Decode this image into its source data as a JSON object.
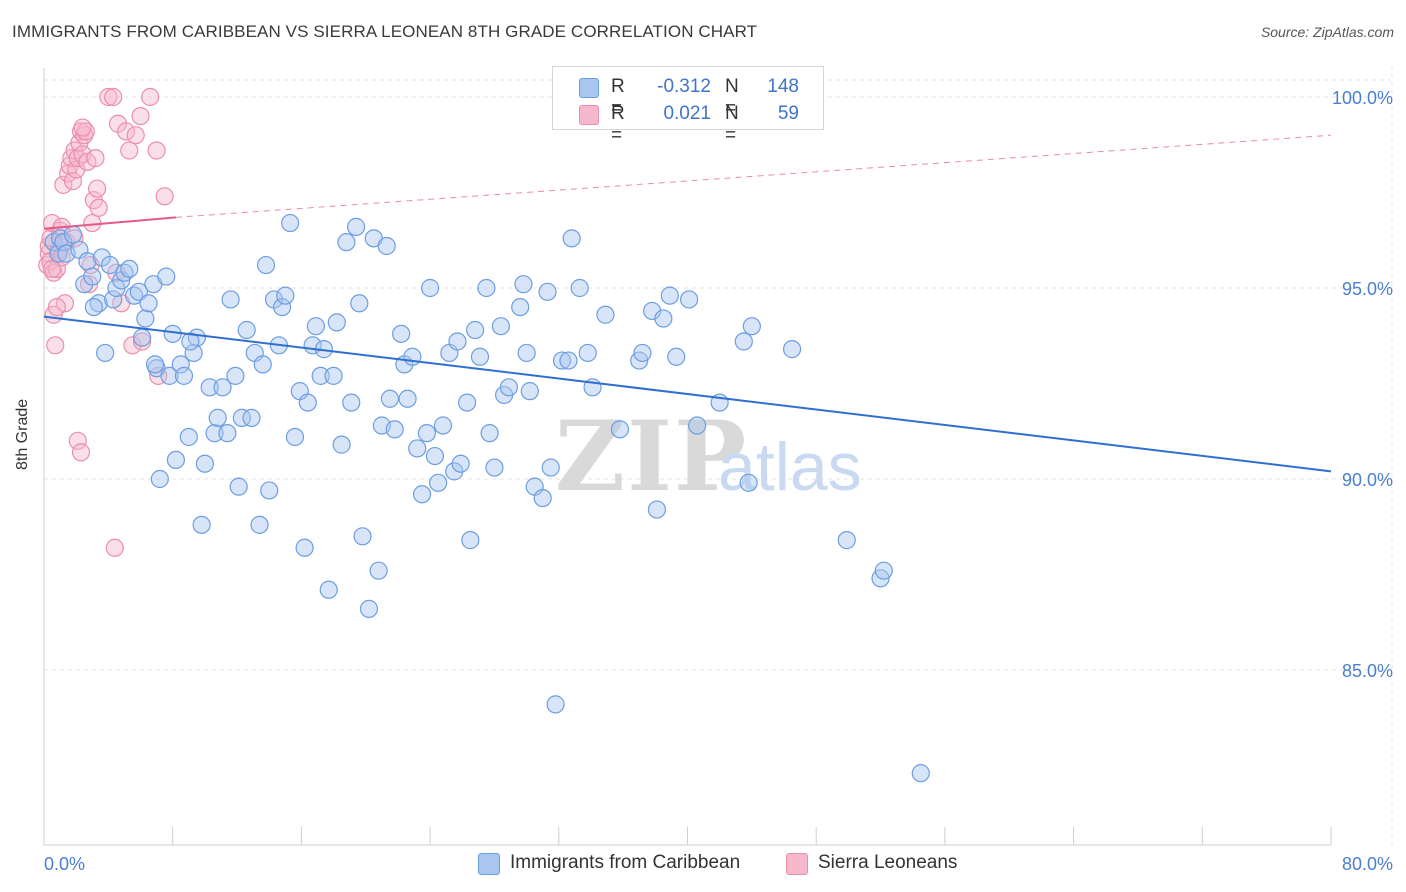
{
  "title": "IMMIGRANTS FROM CARIBBEAN VS SIERRA LEONEAN 8TH GRADE CORRELATION CHART",
  "source": "Source: ZipAtlas.com",
  "watermark": {
    "part1": "ZIP",
    "part2": "atlas"
  },
  "legend": {
    "rows": [
      {
        "r_key": "R =",
        "r_value": "-0.312",
        "n_key": "N =",
        "n_value": "148",
        "color": "#a8c6f0"
      },
      {
        "r_key": "R =",
        "r_value": "0.021",
        "n_key": "N =",
        "n_value": "59",
        "color": "#f6b8cb"
      }
    ]
  },
  "bottom_legend": {
    "series1": "Immigrants from Caribbean",
    "series2": "Sierra Leoneans"
  },
  "colors": {
    "blue_fill": "#a8c6f0",
    "blue_stroke": "#6d9ee0",
    "blue_line": "#2f6fd0",
    "pink_fill": "#f6b8cb",
    "pink_stroke": "#ea8fab",
    "pink_line": "#e05a8a",
    "tick": "#4a7fd0",
    "grid": "#e3e3e3"
  },
  "chart_data": {
    "type": "scatter",
    "title": "IMMIGRANTS FROM CARIBBEAN VS SIERRA LEONEAN 8TH GRADE CORRELATION CHART",
    "xlabel": "",
    "ylabel": "8th Grade",
    "xlim": [
      0,
      80
    ],
    "ylim": [
      80.5,
      101.5
    ],
    "x_tick_labels": [
      "0.0%",
      "80.0%"
    ],
    "y_ticks": [
      85,
      90,
      95,
      100
    ],
    "y_tick_labels": [
      "85.0%",
      "90.0%",
      "95.0%",
      "100.0%"
    ],
    "grid": true,
    "legend_position": "top-center",
    "series": [
      {
        "name": "Immigrants from Caribbean",
        "R": -0.312,
        "N": 148,
        "trend": {
          "x": [
            0,
            80
          ],
          "y": [
            94.25,
            90.2
          ]
        },
        "points": [
          [
            0.6,
            96.2
          ],
          [
            0.9,
            95.9
          ],
          [
            1.0,
            96.3
          ],
          [
            1.2,
            96.2
          ],
          [
            1.4,
            95.9
          ],
          [
            1.8,
            96.4
          ],
          [
            2.2,
            96.0
          ],
          [
            2.5,
            95.1
          ],
          [
            2.7,
            95.7
          ],
          [
            3.0,
            95.3
          ],
          [
            3.4,
            94.6
          ],
          [
            3.6,
            95.8
          ],
          [
            3.8,
            93.3
          ],
          [
            4.1,
            95.6
          ],
          [
            4.3,
            94.7
          ],
          [
            4.5,
            95.0
          ],
          [
            4.8,
            95.2
          ],
          [
            5.0,
            95.4
          ],
          [
            5.3,
            95.5
          ],
          [
            5.6,
            94.8
          ],
          [
            5.9,
            94.9
          ],
          [
            6.1,
            93.7
          ],
          [
            6.3,
            94.2
          ],
          [
            6.5,
            94.6
          ],
          [
            6.8,
            95.1
          ],
          [
            7.0,
            92.9
          ],
          [
            7.2,
            90.0
          ],
          [
            7.6,
            95.3
          ],
          [
            7.8,
            92.7
          ],
          [
            8.0,
            93.8
          ],
          [
            8.2,
            90.5
          ],
          [
            8.5,
            93.0
          ],
          [
            8.7,
            92.7
          ],
          [
            9.0,
            91.1
          ],
          [
            9.3,
            93.3
          ],
          [
            9.5,
            93.7
          ],
          [
            9.8,
            88.8
          ],
          [
            10.0,
            90.4
          ],
          [
            10.3,
            92.4
          ],
          [
            10.6,
            91.2
          ],
          [
            10.8,
            91.6
          ],
          [
            11.1,
            92.4
          ],
          [
            11.4,
            91.2
          ],
          [
            11.6,
            94.7
          ],
          [
            11.9,
            92.7
          ],
          [
            12.1,
            89.8
          ],
          [
            12.3,
            91.6
          ],
          [
            12.6,
            93.9
          ],
          [
            12.9,
            91.6
          ],
          [
            13.1,
            93.3
          ],
          [
            13.4,
            88.8
          ],
          [
            13.6,
            93.0
          ],
          [
            13.8,
            95.6
          ],
          [
            14.0,
            89.7
          ],
          [
            14.3,
            94.7
          ],
          [
            14.6,
            93.5
          ],
          [
            14.8,
            94.5
          ],
          [
            15.0,
            94.8
          ],
          [
            15.3,
            96.7
          ],
          [
            15.6,
            91.1
          ],
          [
            15.9,
            92.3
          ],
          [
            16.2,
            88.2
          ],
          [
            16.4,
            92.0
          ],
          [
            16.7,
            93.5
          ],
          [
            16.9,
            94.0
          ],
          [
            17.2,
            92.7
          ],
          [
            17.4,
            93.4
          ],
          [
            17.7,
            87.1
          ],
          [
            18.0,
            92.7
          ],
          [
            18.2,
            94.1
          ],
          [
            18.5,
            90.9
          ],
          [
            18.8,
            96.2
          ],
          [
            19.1,
            92.0
          ],
          [
            19.4,
            96.6
          ],
          [
            19.6,
            94.6
          ],
          [
            19.8,
            88.5
          ],
          [
            20.2,
            86.6
          ],
          [
            20.5,
            96.3
          ],
          [
            20.8,
            87.6
          ],
          [
            21.0,
            91.4
          ],
          [
            21.3,
            96.1
          ],
          [
            21.5,
            92.1
          ],
          [
            21.8,
            91.3
          ],
          [
            22.2,
            93.8
          ],
          [
            22.4,
            93.0
          ],
          [
            22.6,
            92.1
          ],
          [
            22.9,
            93.2
          ],
          [
            23.2,
            90.8
          ],
          [
            23.5,
            89.6
          ],
          [
            23.8,
            91.2
          ],
          [
            24.0,
            95.0
          ],
          [
            24.3,
            90.6
          ],
          [
            24.5,
            89.9
          ],
          [
            24.8,
            91.4
          ],
          [
            25.2,
            93.3
          ],
          [
            25.5,
            90.2
          ],
          [
            25.7,
            93.6
          ],
          [
            25.9,
            90.4
          ],
          [
            26.3,
            92.0
          ],
          [
            26.5,
            88.4
          ],
          [
            26.8,
            93.9
          ],
          [
            27.1,
            93.2
          ],
          [
            27.5,
            95.0
          ],
          [
            27.7,
            91.2
          ],
          [
            28.0,
            90.3
          ],
          [
            28.4,
            94.0
          ],
          [
            28.6,
            92.2
          ],
          [
            28.9,
            92.4
          ],
          [
            29.6,
            94.5
          ],
          [
            29.8,
            95.1
          ],
          [
            30.0,
            93.3
          ],
          [
            30.2,
            92.3
          ],
          [
            30.5,
            89.8
          ],
          [
            31.0,
            89.5
          ],
          [
            31.3,
            94.9
          ],
          [
            31.5,
            90.3
          ],
          [
            31.8,
            84.1
          ],
          [
            32.2,
            93.1
          ],
          [
            32.6,
            93.1
          ],
          [
            32.8,
            96.3
          ],
          [
            33.3,
            95.0
          ],
          [
            33.8,
            93.3
          ],
          [
            34.1,
            92.4
          ],
          [
            34.9,
            94.3
          ],
          [
            35.8,
            91.3
          ],
          [
            37.0,
            93.1
          ],
          [
            37.2,
            93.3
          ],
          [
            37.8,
            94.4
          ],
          [
            38.1,
            89.2
          ],
          [
            38.5,
            94.2
          ],
          [
            38.9,
            94.8
          ],
          [
            39.3,
            93.2
          ],
          [
            40.1,
            94.7
          ],
          [
            40.6,
            91.4
          ],
          [
            41.2,
            100.0
          ],
          [
            42.0,
            92.0
          ],
          [
            43.5,
            93.6
          ],
          [
            43.8,
            89.9
          ],
          [
            44.0,
            94.0
          ],
          [
            46.1,
            100.0
          ],
          [
            46.5,
            93.4
          ],
          [
            49.9,
            88.4
          ],
          [
            52.0,
            87.4
          ],
          [
            52.2,
            87.6
          ],
          [
            54.5,
            82.3
          ],
          [
            3.1,
            94.5
          ],
          [
            6.9,
            93.0
          ],
          [
            9.1,
            93.6
          ]
        ]
      },
      {
        "name": "Sierra Leoneans",
        "R": 0.021,
        "N": 59,
        "trend": {
          "x": [
            0,
            8.2
          ],
          "y": [
            96.55,
            96.85
          ],
          "extended_to": [
            80,
            99.0
          ]
        },
        "points": [
          [
            0.2,
            95.6
          ],
          [
            0.3,
            95.9
          ],
          [
            0.3,
            96.1
          ],
          [
            0.4,
            95.7
          ],
          [
            0.4,
            96.3
          ],
          [
            0.5,
            96.7
          ],
          [
            0.6,
            94.3
          ],
          [
            0.6,
            95.4
          ],
          [
            0.7,
            93.5
          ],
          [
            0.8,
            95.5
          ],
          [
            0.9,
            96.0
          ],
          [
            1.0,
            96.5
          ],
          [
            1.1,
            95.8
          ],
          [
            1.2,
            97.7
          ],
          [
            1.3,
            94.6
          ],
          [
            1.4,
            96.2
          ],
          [
            1.5,
            98.0
          ],
          [
            1.6,
            98.2
          ],
          [
            1.7,
            98.4
          ],
          [
            1.8,
            97.8
          ],
          [
            1.9,
            98.6
          ],
          [
            2.0,
            98.1
          ],
          [
            2.1,
            98.4
          ],
          [
            2.2,
            98.8
          ],
          [
            2.3,
            99.1
          ],
          [
            2.4,
            98.5
          ],
          [
            2.5,
            99.0
          ],
          [
            2.6,
            99.1
          ],
          [
            2.7,
            98.3
          ],
          [
            2.8,
            95.1
          ],
          [
            2.9,
            95.6
          ],
          [
            3.0,
            96.7
          ],
          [
            3.1,
            97.3
          ],
          [
            3.2,
            98.4
          ],
          [
            3.3,
            97.6
          ],
          [
            3.4,
            97.1
          ],
          [
            2.4,
            99.2
          ],
          [
            4.6,
            99.3
          ],
          [
            4.0,
            100.0
          ],
          [
            4.3,
            100.0
          ],
          [
            5.1,
            99.1
          ],
          [
            5.3,
            98.6
          ],
          [
            5.7,
            99.0
          ],
          [
            6.0,
            99.5
          ],
          [
            6.6,
            100.0
          ],
          [
            7.0,
            98.6
          ],
          [
            7.5,
            97.4
          ],
          [
            1.9,
            96.3
          ],
          [
            2.1,
            91.0
          ],
          [
            2.3,
            90.7
          ],
          [
            4.5,
            95.4
          ],
          [
            4.8,
            94.6
          ],
          [
            5.5,
            93.5
          ],
          [
            6.1,
            93.6
          ],
          [
            7.1,
            92.7
          ],
          [
            4.4,
            88.2
          ],
          [
            0.5,
            95.5
          ],
          [
            1.1,
            96.6
          ],
          [
            0.8,
            94.5
          ]
        ]
      }
    ]
  }
}
